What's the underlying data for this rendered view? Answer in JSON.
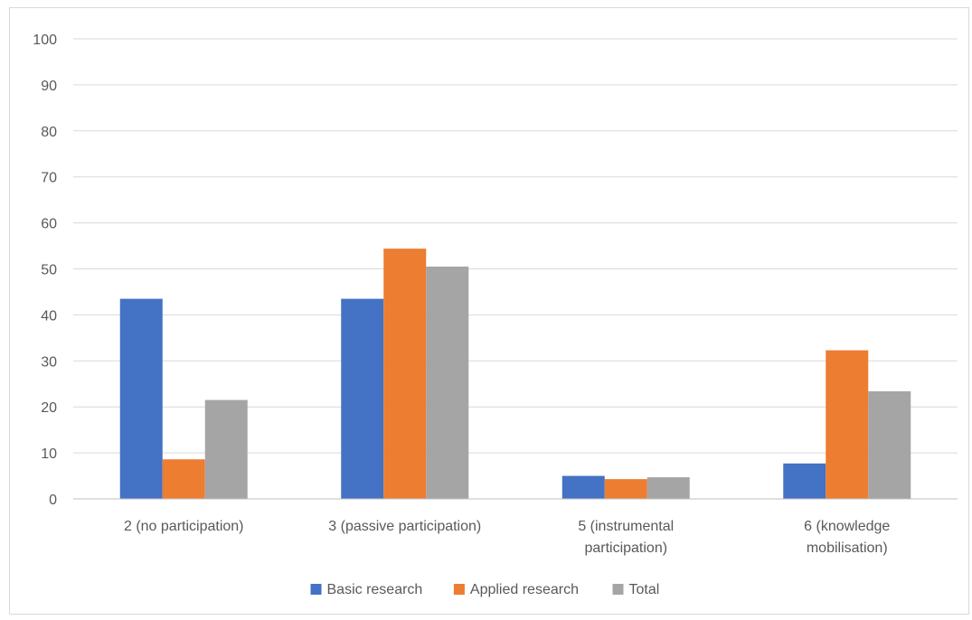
{
  "chart_data": {
    "type": "bar",
    "title": "",
    "xlabel": "",
    "ylabel": "",
    "ylim": [
      0,
      100
    ],
    "yticks": [
      0,
      10,
      20,
      30,
      40,
      50,
      60,
      70,
      80,
      90,
      100
    ],
    "grid": true,
    "legend_position": "bottom",
    "categories": [
      [
        "2 (no participation)"
      ],
      [
        "3 (passive participation)"
      ],
      [
        "5 (instrumental",
        "participation)"
      ],
      [
        "6 (knowledge",
        "mobilisation)"
      ]
    ],
    "series": [
      {
        "name": "Basic research",
        "color": "#4472C4",
        "values": [
          43.5,
          43.5,
          5.0,
          7.7
        ]
      },
      {
        "name": "Applied research",
        "color": "#ED7D31",
        "values": [
          8.6,
          54.4,
          4.3,
          32.3
        ]
      },
      {
        "name": "Total",
        "color": "#A5A5A5",
        "values": [
          21.5,
          50.5,
          4.7,
          23.4
        ]
      }
    ]
  }
}
